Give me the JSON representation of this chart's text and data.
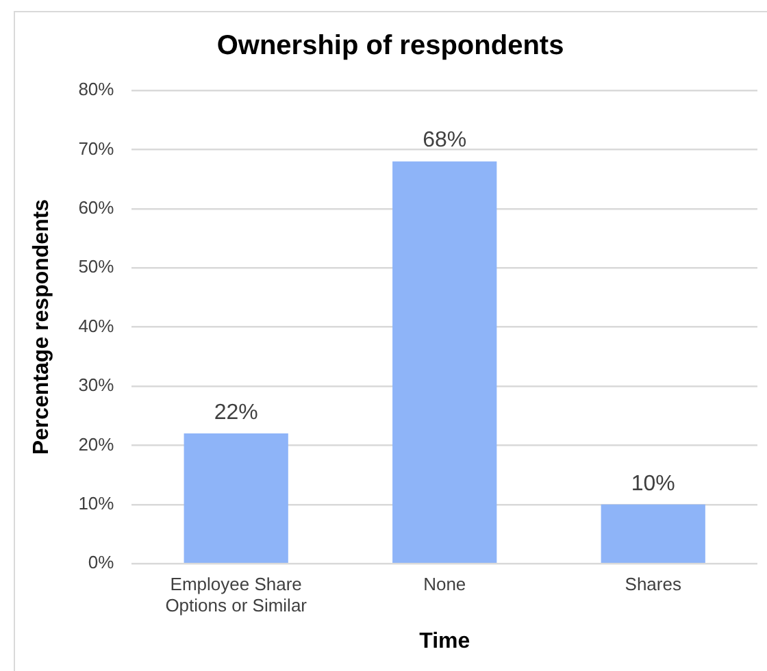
{
  "chart_data": {
    "type": "bar",
    "title": "Ownership of respondents",
    "xlabel": "Time",
    "ylabel": "Percentage respondents",
    "categories": [
      "Employee Share Options or Similar",
      "None",
      "Shares"
    ],
    "values": [
      22,
      68,
      10
    ],
    "value_labels": [
      "22%",
      "68%",
      "10%"
    ],
    "color": "#8eb4f8",
    "ylim": [
      0,
      80
    ],
    "yticks": [
      {
        "value": 0,
        "label": "0%"
      },
      {
        "value": 10,
        "label": "10%"
      },
      {
        "value": 20,
        "label": "20%"
      },
      {
        "value": 30,
        "label": "30%"
      },
      {
        "value": 40,
        "label": "40%"
      },
      {
        "value": 50,
        "label": "50%"
      },
      {
        "value": 60,
        "label": "60%"
      },
      {
        "value": 70,
        "label": "70%"
      },
      {
        "value": 80,
        "label": "80%"
      }
    ],
    "grid": "y"
  }
}
